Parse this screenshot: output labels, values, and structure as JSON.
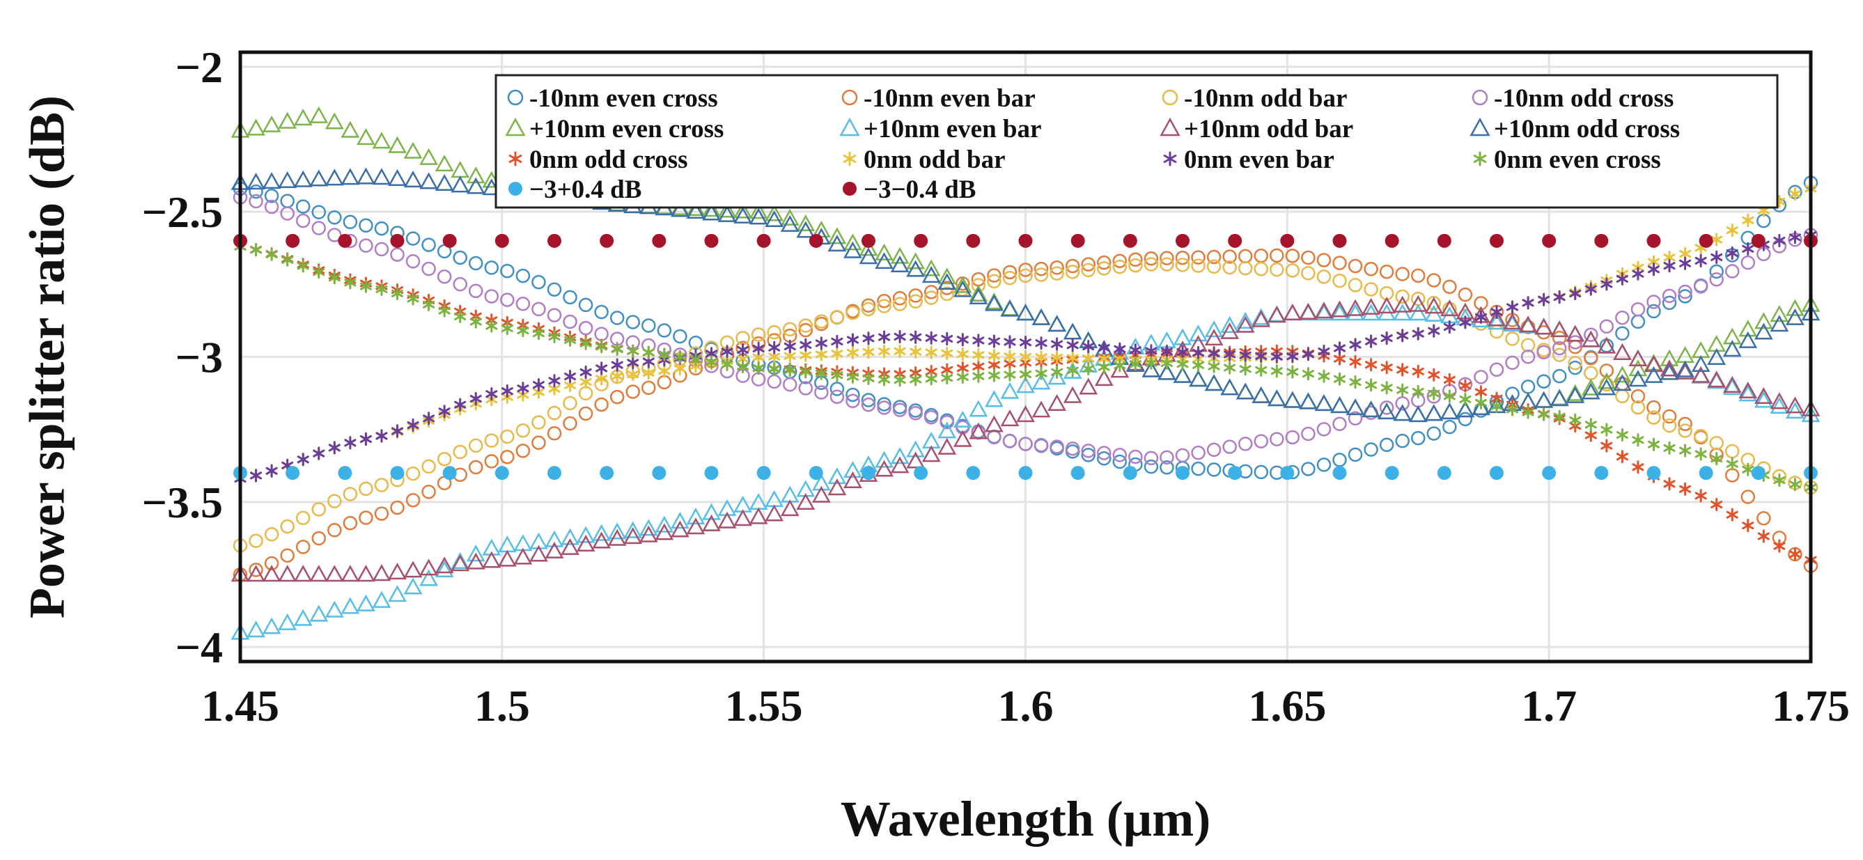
{
  "chart_data": {
    "type": "scatter",
    "xlabel": "Wavelength (µm)",
    "ylabel": "Power splitter ratio (dB)",
    "xlim": [
      1.45,
      1.75
    ],
    "ylim": [
      -4.05,
      -1.95
    ],
    "xticks": [
      1.45,
      1.5,
      1.55,
      1.6,
      1.65,
      1.7,
      1.75
    ],
    "xtick_labels": [
      "1.45",
      "1.5",
      "1.55",
      "1.6",
      "1.65",
      "1.7",
      "1.75"
    ],
    "yticks": [
      -2,
      -2.5,
      -3,
      -3.5,
      -4
    ],
    "ytick_labels": [
      "−2",
      "−2.5",
      "−3",
      "−3.5",
      "−4"
    ],
    "grid": true,
    "legend_position": "top-right",
    "series": [
      {
        "name": "-10nm even cross",
        "color": "#3f8fc6",
        "marker": "circle-open",
        "x": [
          1.45,
          1.475,
          1.5,
          1.525,
          1.55,
          1.575,
          1.6,
          1.625,
          1.65,
          1.675,
          1.7,
          1.725,
          1.75
        ],
        "y": [
          -2.42,
          -2.55,
          -2.7,
          -2.88,
          -3.03,
          -3.17,
          -3.3,
          -3.38,
          -3.4,
          -3.28,
          -3.08,
          -2.8,
          -2.4
        ]
      },
      {
        "name": "-10nm even bar",
        "color": "#e07b39",
        "marker": "circle-open",
        "x": [
          1.45,
          1.475,
          1.5,
          1.525,
          1.55,
          1.575,
          1.6,
          1.625,
          1.65,
          1.675,
          1.7,
          1.725,
          1.75
        ],
        "y": [
          -3.75,
          -3.55,
          -3.35,
          -3.12,
          -2.95,
          -2.8,
          -2.7,
          -2.66,
          -2.65,
          -2.72,
          -2.92,
          -3.22,
          -3.72
        ]
      },
      {
        "name": "-10nm odd bar",
        "color": "#e8b84a",
        "marker": "circle-open",
        "x": [
          1.45,
          1.475,
          1.5,
          1.525,
          1.55,
          1.575,
          1.6,
          1.625,
          1.65,
          1.675,
          1.7,
          1.725,
          1.75
        ],
        "y": [
          -3.65,
          -3.45,
          -3.28,
          -3.05,
          -2.92,
          -2.82,
          -2.72,
          -2.68,
          -2.7,
          -2.8,
          -2.98,
          -3.25,
          -3.45
        ]
      },
      {
        "name": "-10nm odd cross",
        "color": "#b07cc6",
        "marker": "circle-open",
        "x": [
          1.45,
          1.475,
          1.5,
          1.525,
          1.55,
          1.575,
          1.6,
          1.625,
          1.65,
          1.675,
          1.7,
          1.725,
          1.75
        ],
        "y": [
          -2.45,
          -2.62,
          -2.8,
          -2.95,
          -3.08,
          -3.18,
          -3.3,
          -3.35,
          -3.28,
          -3.15,
          -2.98,
          -2.78,
          -2.58
        ]
      },
      {
        "name": "+10nm even cross",
        "color": "#7db44a",
        "marker": "triangle-open",
        "x": [
          1.45,
          1.465,
          1.475,
          1.5,
          1.525,
          1.55,
          1.575,
          1.6,
          1.625,
          1.65,
          1.675,
          1.7,
          1.725,
          1.75
        ],
        "y": [
          -2.22,
          -2.17,
          -2.25,
          -2.4,
          -2.48,
          -2.5,
          -2.65,
          -2.85,
          -3.05,
          -3.15,
          -3.2,
          -3.15,
          -3.0,
          -2.82
        ]
      },
      {
        "name": "+10nm even bar",
        "color": "#56bde8",
        "marker": "triangle-open",
        "x": [
          1.45,
          1.475,
          1.5,
          1.525,
          1.55,
          1.575,
          1.6,
          1.625,
          1.65,
          1.675,
          1.7,
          1.725,
          1.75
        ],
        "y": [
          -3.95,
          -3.85,
          -3.65,
          -3.6,
          -3.5,
          -3.35,
          -3.1,
          -2.95,
          -2.85,
          -2.85,
          -2.9,
          -3.05,
          -3.2
        ]
      },
      {
        "name": "+10nm odd bar",
        "color": "#a8506a",
        "marker": "triangle-open",
        "x": [
          1.45,
          1.475,
          1.5,
          1.525,
          1.55,
          1.575,
          1.6,
          1.625,
          1.65,
          1.675,
          1.7,
          1.725,
          1.75
        ],
        "y": [
          -3.75,
          -3.75,
          -3.7,
          -3.62,
          -3.55,
          -3.38,
          -3.2,
          -3.0,
          -2.85,
          -2.82,
          -2.9,
          -3.05,
          -3.18
        ]
      },
      {
        "name": "+10nm odd cross",
        "color": "#3a6ea8",
        "marker": "triangle-open",
        "x": [
          1.45,
          1.475,
          1.5,
          1.525,
          1.55,
          1.575,
          1.6,
          1.625,
          1.65,
          1.675,
          1.7,
          1.725,
          1.75
        ],
        "y": [
          -2.4,
          -2.38,
          -2.42,
          -2.48,
          -2.52,
          -2.68,
          -2.85,
          -3.05,
          -3.15,
          -3.2,
          -3.15,
          -3.05,
          -2.85
        ]
      },
      {
        "name": "0nm odd cross",
        "color": "#e0522a",
        "marker": "star",
        "x": [
          1.45,
          1.475,
          1.5,
          1.525,
          1.55,
          1.575,
          1.6,
          1.625,
          1.65,
          1.675,
          1.7,
          1.725,
          1.75
        ],
        "y": [
          -2.62,
          -2.75,
          -2.88,
          -2.98,
          -3.04,
          -3.06,
          -3.02,
          -2.99,
          -2.98,
          -3.05,
          -3.2,
          -3.45,
          -3.7
        ]
      },
      {
        "name": "0nm odd bar",
        "color": "#e8c23a",
        "marker": "star",
        "x": [
          1.45,
          1.475,
          1.5,
          1.525,
          1.55,
          1.575,
          1.6,
          1.625,
          1.65,
          1.675,
          1.7,
          1.725,
          1.75
        ],
        "y": [
          -3.42,
          -3.28,
          -3.14,
          -3.06,
          -3.0,
          -2.98,
          -3.0,
          -3.01,
          -3.0,
          -2.92,
          -2.8,
          -2.65,
          -2.42
        ]
      },
      {
        "name": "0nm even bar",
        "color": "#6a3d9a",
        "marker": "star",
        "x": [
          1.45,
          1.475,
          1.5,
          1.525,
          1.55,
          1.575,
          1.6,
          1.625,
          1.65,
          1.675,
          1.7,
          1.725,
          1.75
        ],
        "y": [
          -3.42,
          -3.28,
          -3.12,
          -3.02,
          -2.97,
          -2.93,
          -2.95,
          -2.98,
          -3.0,
          -2.92,
          -2.8,
          -2.68,
          -2.58
        ]
      },
      {
        "name": "0nm even cross",
        "color": "#7cb340",
        "marker": "star",
        "x": [
          1.45,
          1.475,
          1.5,
          1.525,
          1.55,
          1.575,
          1.6,
          1.625,
          1.65,
          1.675,
          1.7,
          1.725,
          1.75
        ],
        "y": [
          -2.62,
          -2.76,
          -2.9,
          -2.98,
          -3.04,
          -3.08,
          -3.06,
          -3.02,
          -3.05,
          -3.12,
          -3.2,
          -3.32,
          -3.45
        ]
      },
      {
        "name": "−3+0.4 dB",
        "color": "#3db1e6",
        "marker": "dot",
        "x": [
          1.45,
          1.46,
          1.47,
          1.48,
          1.49,
          1.5,
          1.51,
          1.52,
          1.53,
          1.54,
          1.55,
          1.56,
          1.57,
          1.58,
          1.59,
          1.6,
          1.61,
          1.62,
          1.63,
          1.64,
          1.65,
          1.66,
          1.67,
          1.68,
          1.69,
          1.7,
          1.71,
          1.72,
          1.73,
          1.74,
          1.75
        ],
        "y": [
          -3.4,
          -3.4,
          -3.4,
          -3.4,
          -3.4,
          -3.4,
          -3.4,
          -3.4,
          -3.4,
          -3.4,
          -3.4,
          -3.4,
          -3.4,
          -3.4,
          -3.4,
          -3.4,
          -3.4,
          -3.4,
          -3.4,
          -3.4,
          -3.4,
          -3.4,
          -3.4,
          -3.4,
          -3.4,
          -3.4,
          -3.4,
          -3.4,
          -3.4,
          -3.4,
          -3.4
        ]
      },
      {
        "name": "−3−0.4 dB",
        "color": "#a5142a",
        "marker": "dot",
        "x": [
          1.45,
          1.46,
          1.47,
          1.48,
          1.49,
          1.5,
          1.51,
          1.52,
          1.53,
          1.54,
          1.55,
          1.56,
          1.57,
          1.58,
          1.59,
          1.6,
          1.61,
          1.62,
          1.63,
          1.64,
          1.65,
          1.66,
          1.67,
          1.68,
          1.69,
          1.7,
          1.71,
          1.72,
          1.73,
          1.74,
          1.75
        ],
        "y": [
          -2.6,
          -2.6,
          -2.6,
          -2.6,
          -2.6,
          -2.6,
          -2.6,
          -2.6,
          -2.6,
          -2.6,
          -2.6,
          -2.6,
          -2.6,
          -2.6,
          -2.6,
          -2.6,
          -2.6,
          -2.6,
          -2.6,
          -2.6,
          -2.6,
          -2.6,
          -2.6,
          -2.6,
          -2.6,
          -2.6,
          -2.6,
          -2.6,
          -2.6,
          -2.6,
          -2.6
        ]
      }
    ]
  }
}
